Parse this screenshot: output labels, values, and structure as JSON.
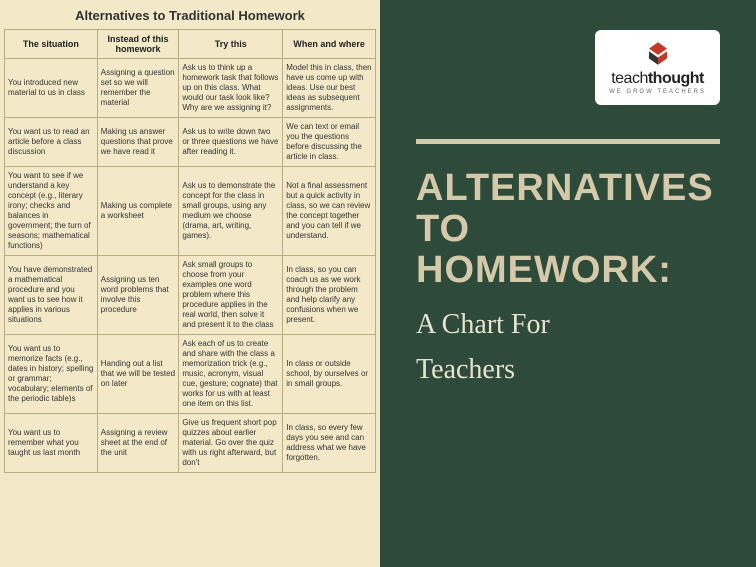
{
  "table": {
    "title": "Alternatives to Traditional Homework",
    "background_color": "#f3e9c8",
    "border_color": "#b8ac85",
    "header_fontsize": 9,
    "cell_fontsize": 8,
    "columns": [
      "The situation",
      "Instead of this homework",
      "Try this",
      "When and where"
    ],
    "column_widths": [
      "25%",
      "22%",
      "28%",
      "25%"
    ],
    "rows": [
      [
        "You introduced new material to us in class",
        "Assigning a question set so we will remember the material",
        "Ask us to think up a homework task that follows up on this class. What would our task look like? Why are we assigning it?",
        "Model this in class, then have us come up with ideas. Use our best ideas as subsequent assignments."
      ],
      [
        "You want us to read an article before a class discussion",
        "Making us answer questions that prove we have read it",
        "Ask us to write down two or three questions we have after reading it.",
        "We can text or email you the questions before discussing the article in class."
      ],
      [
        "You want to see if we understand a key concept (e.g., literary irony; checks and balances in government; the turn of seasons; mathematical functions)",
        "Making us complete a worksheet",
        "Ask us to demonstrate the concept for the class in small groups, using any medium we choose (drama, art, writing, games).",
        "Not a final assessment but a quick activity in class, so we can review the concept together and you can tell if we understand."
      ],
      [
        "You have demonstrated a mathematical procedure and you want us to see how it applies in various situations",
        "Assigning us ten word problems that involve this procedure",
        "Ask small groups to choose from your examples one word problem where this procedure applies in the real world, then solve it and present it to the class",
        "In class, so you can coach us as we work through the problem and help clarify any confusions when we present."
      ],
      [
        "You want us to memorize facts (e.g., dates in history; spelling or grammar; vocabulary; elements of the periodic table)s",
        "Handing out a list that we will be tested on later",
        "Ask each of us to create and share with the class a memorization trick (e.g., music, acronym, visual cue, gesture; cognate) that works for us with at least one item on this list.",
        "In class or outside school, by ourselves or in small groups."
      ],
      [
        "You want us to remember what you taught us last month",
        "Assigning a review sheet at the end of the unit",
        "Give us frequent short pop quizzes about earlier material. Go over the quiz with us right afterward, but don't",
        "In class, so every few days you see and can address what we have forgotten."
      ]
    ]
  },
  "right": {
    "background_color": "#2d4a3a",
    "accent_color": "#d4c9a8",
    "logo": {
      "brand_part1": "teach",
      "brand_part2": "thought",
      "tagline": "WE GROW TEACHERS",
      "mark_color1": "#c0392b",
      "mark_color2": "#333333"
    },
    "title_line1": "ALTERNATIVES",
    "title_line2": "TO HOMEWORK:",
    "subtitle_line1": "A Chart For",
    "subtitle_line2": "Teachers"
  }
}
